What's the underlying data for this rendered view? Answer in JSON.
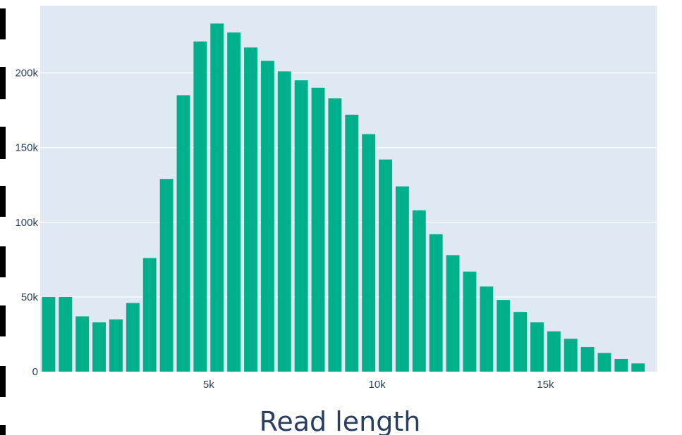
{
  "chart_data": {
    "type": "bar",
    "title": "",
    "xlabel": "Read length",
    "ylabel": "",
    "bin_width": 500,
    "x": [
      250,
      750,
      1250,
      1750,
      2250,
      2750,
      3250,
      3750,
      4250,
      4750,
      5250,
      5750,
      6250,
      6750,
      7250,
      7750,
      8250,
      8750,
      9250,
      9750,
      10250,
      10750,
      11250,
      11750,
      12250,
      12750,
      13250,
      13750,
      14250,
      14750,
      15250,
      15750,
      16250,
      16750,
      17250,
      17750,
      18250
    ],
    "values": [
      50000,
      50000,
      37000,
      33000,
      35000,
      46000,
      76000,
      129000,
      185000,
      221000,
      233000,
      227000,
      217000,
      208000,
      201000,
      195000,
      190000,
      183000,
      172000,
      159000,
      142000,
      124000,
      108000,
      92000,
      78000,
      67000,
      57000,
      48000,
      40000,
      33000,
      27000,
      22000,
      16500,
      12500,
      8500,
      5500,
      0
    ],
    "xlim": [
      0,
      18300
    ],
    "ylim": [
      0,
      245000
    ],
    "xticks": [
      5000,
      10000,
      15000
    ],
    "xtick_labels": [
      "5k",
      "10k",
      "15k"
    ],
    "yticks": [
      0,
      50000,
      100000,
      150000,
      200000
    ],
    "ytick_labels": [
      "0",
      "50k",
      "100k",
      "150k",
      "200k"
    ],
    "grid": true,
    "colors": {
      "bar": "#00b08a",
      "plot_bg": "#dee9f4",
      "grid": "#ffffff",
      "text": "#2a3f5f"
    }
  }
}
